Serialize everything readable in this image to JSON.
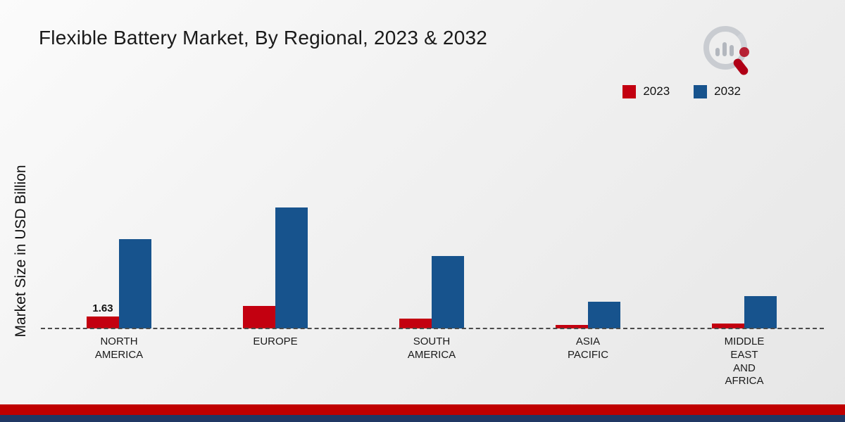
{
  "title": "Flexible Battery Market, By Regional, 2023 & 2032",
  "y_axis_label": "Market Size in USD Billion",
  "legend": {
    "items": [
      {
        "label": "2023",
        "color": "#c30010"
      },
      {
        "label": "2032",
        "color": "#17538d"
      }
    ]
  },
  "brand": {
    "logo": "magnifier-bar-chart-logo"
  },
  "footer": {
    "red_strip_color": "#c00000",
    "navy_strip_color": "#203864"
  },
  "chart_data": {
    "type": "bar",
    "title": "Flexible Battery Market, By Regional, 2023 & 2032",
    "xlabel": "",
    "ylabel": "Market Size in USD Billion",
    "categories": [
      "NORTH AMERICA",
      "EUROPE",
      "SOUTH AMERICA",
      "ASIA PACIFIC",
      "MIDDLE EAST AND AFRICA"
    ],
    "category_lines": [
      [
        "NORTH",
        "AMERICA"
      ],
      [
        "EUROPE"
      ],
      [
        "SOUTH",
        "AMERICA"
      ],
      [
        "ASIA",
        "PACIFIC"
      ],
      [
        "MIDDLE",
        "EAST",
        "AND",
        "AFRICA"
      ]
    ],
    "series": [
      {
        "name": "2023",
        "color": "#c30010",
        "values": [
          1.63,
          3.1,
          1.3,
          0.5,
          0.65
        ]
      },
      {
        "name": "2032",
        "color": "#17538d",
        "values": [
          12.2,
          16.5,
          9.9,
          3.7,
          4.4
        ]
      }
    ],
    "labels": {
      "2023": [
        "1.63",
        "",
        "",
        "",
        ""
      ],
      "2032": [
        "",
        "",
        "",
        "",
        ""
      ]
    },
    "ylim": [
      0,
      18
    ],
    "grid": false,
    "baseline_style": "dashed",
    "legend_position": "top-right"
  }
}
